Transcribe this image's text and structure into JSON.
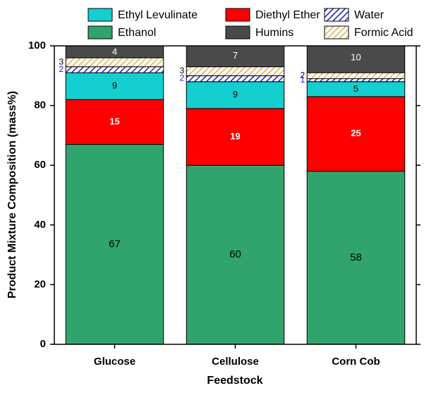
{
  "chart_data": {
    "type": "stacked_bar",
    "x_label": "Feedstock",
    "y_label": "Product Mixture Composition (mass%)",
    "categories": [
      "Glucose",
      "Cellulose",
      "Corn Cob"
    ],
    "series": [
      {
        "name": "Ethanol",
        "color": "#30a46c",
        "values": [
          67,
          60,
          58
        ]
      },
      {
        "name": "Diethyl Ether",
        "color": "#ff0000",
        "values": [
          15,
          19,
          25
        ]
      },
      {
        "name": "Ethyl Levulinate",
        "color": "#14cfcf",
        "values": [
          9,
          9,
          5
        ]
      },
      {
        "name": "Water",
        "color": "#1a1adb",
        "hatch": true,
        "values": [
          2,
          2,
          1
        ]
      },
      {
        "name": "Formic Acid",
        "color": "#e3b23c",
        "hatch": true,
        "values": [
          3,
          3,
          2
        ]
      },
      {
        "name": "Humins",
        "color": "#4a4a4a",
        "values": [
          4,
          7,
          10
        ]
      }
    ],
    "ylim": [
      0,
      100
    ],
    "yticks": [
      0,
      20,
      40,
      60,
      80,
      100
    ]
  }
}
